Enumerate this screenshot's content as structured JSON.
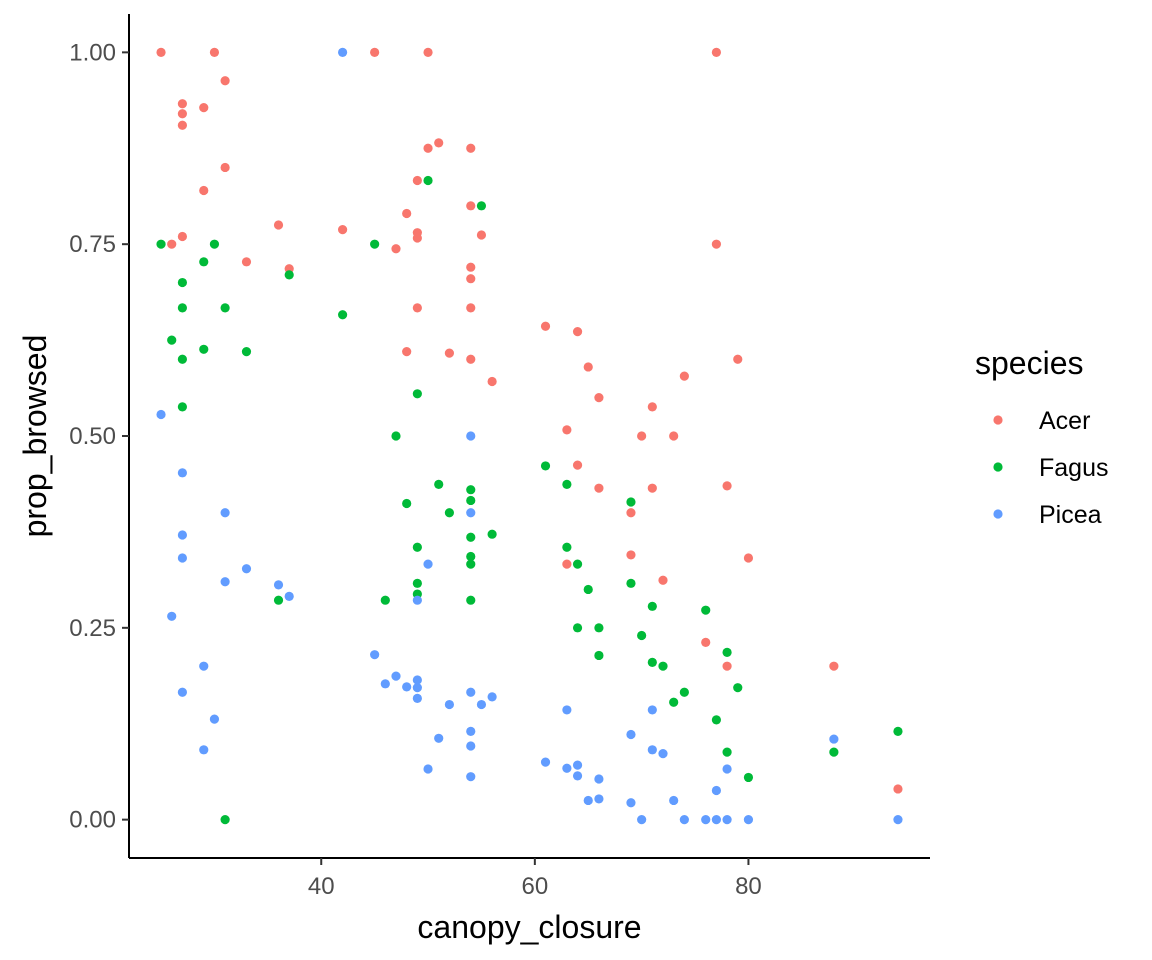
{
  "chart_data": {
    "type": "scatter",
    "xlabel": "canopy_closure",
    "ylabel": "prop_browsed",
    "xlim": [
      22,
      97
    ],
    "ylim": [
      -0.05,
      1.05
    ],
    "x_ticks": [
      40,
      60,
      80
    ],
    "x_tick_labels": [
      "40",
      "60",
      "80"
    ],
    "y_ticks": [
      0,
      0.25,
      0.5,
      0.75,
      1
    ],
    "y_tick_labels": [
      "0.00",
      "0.25",
      "0.50",
      "0.75",
      "1.00"
    ],
    "grid": false,
    "legend": {
      "title": "species",
      "position": "right"
    },
    "series": [
      {
        "name": "Acer",
        "color": "#F8766D",
        "points": [
          [
            25,
            1.0
          ],
          [
            30,
            1.0
          ],
          [
            45,
            1.0
          ],
          [
            50,
            1.0
          ],
          [
            77,
            1.0
          ],
          [
            31,
            0.963
          ],
          [
            27,
            0.933
          ],
          [
            29,
            0.928
          ],
          [
            27,
            0.92
          ],
          [
            27,
            0.905
          ],
          [
            51,
            0.882
          ],
          [
            50,
            0.875
          ],
          [
            54,
            0.875
          ],
          [
            31,
            0.85
          ],
          [
            49,
            0.833
          ],
          [
            29,
            0.82
          ],
          [
            54,
            0.8
          ],
          [
            48,
            0.79
          ],
          [
            36,
            0.775
          ],
          [
            42,
            0.769
          ],
          [
            49,
            0.765
          ],
          [
            55,
            0.762
          ],
          [
            27,
            0.76
          ],
          [
            49,
            0.758
          ],
          [
            26,
            0.75
          ],
          [
            77,
            0.75
          ],
          [
            47,
            0.744
          ],
          [
            33,
            0.727
          ],
          [
            54,
            0.72
          ],
          [
            37,
            0.718
          ],
          [
            54,
            0.705
          ],
          [
            49,
            0.667
          ],
          [
            54,
            0.667
          ],
          [
            61,
            0.643
          ],
          [
            64,
            0.636
          ],
          [
            48,
            0.61
          ],
          [
            52,
            0.608
          ],
          [
            54,
            0.6
          ],
          [
            79,
            0.6
          ],
          [
            65,
            0.59
          ],
          [
            74,
            0.578
          ],
          [
            56,
            0.571
          ],
          [
            66,
            0.55
          ],
          [
            71,
            0.538
          ],
          [
            63,
            0.508
          ],
          [
            70,
            0.5
          ],
          [
            73,
            0.5
          ],
          [
            64,
            0.462
          ],
          [
            78,
            0.435
          ],
          [
            66,
            0.432
          ],
          [
            71,
            0.432
          ],
          [
            69,
            0.4
          ],
          [
            69,
            0.345
          ],
          [
            80,
            0.341
          ],
          [
            63,
            0.333
          ],
          [
            72,
            0.312
          ],
          [
            76,
            0.231
          ],
          [
            78,
            0.2
          ],
          [
            88,
            0.2
          ],
          [
            94,
            0.04
          ]
        ]
      },
      {
        "name": "Fagus",
        "color": "#00BA38",
        "points": [
          [
            50,
            0.833
          ],
          [
            55,
            0.8
          ],
          [
            25,
            0.75
          ],
          [
            30,
            0.75
          ],
          [
            45,
            0.75
          ],
          [
            29,
            0.727
          ],
          [
            37,
            0.71
          ],
          [
            27,
            0.7
          ],
          [
            27,
            0.667
          ],
          [
            31,
            0.667
          ],
          [
            42,
            0.658
          ],
          [
            26,
            0.625
          ],
          [
            29,
            0.613
          ],
          [
            33,
            0.61
          ],
          [
            27,
            0.6
          ],
          [
            49,
            0.555
          ],
          [
            27,
            0.538
          ],
          [
            47,
            0.5
          ],
          [
            61,
            0.461
          ],
          [
            51,
            0.437
          ],
          [
            63,
            0.437
          ],
          [
            54,
            0.43
          ],
          [
            54,
            0.416
          ],
          [
            69,
            0.414
          ],
          [
            48,
            0.412
          ],
          [
            52,
            0.4
          ],
          [
            56,
            0.372
          ],
          [
            54,
            0.368
          ],
          [
            49,
            0.355
          ],
          [
            63,
            0.355
          ],
          [
            54,
            0.343
          ],
          [
            54,
            0.333
          ],
          [
            64,
            0.333
          ],
          [
            49,
            0.308
          ],
          [
            69,
            0.308
          ],
          [
            65,
            0.3
          ],
          [
            49,
            0.294
          ],
          [
            36,
            0.286
          ],
          [
            46,
            0.286
          ],
          [
            54,
            0.286
          ],
          [
            71,
            0.278
          ],
          [
            76,
            0.273
          ],
          [
            64,
            0.25
          ],
          [
            66,
            0.25
          ],
          [
            70,
            0.24
          ],
          [
            78,
            0.218
          ],
          [
            66,
            0.214
          ],
          [
            71,
            0.205
          ],
          [
            72,
            0.2
          ],
          [
            79,
            0.172
          ],
          [
            74,
            0.166
          ],
          [
            73,
            0.153
          ],
          [
            77,
            0.13
          ],
          [
            94,
            0.115
          ],
          [
            78,
            0.088
          ],
          [
            88,
            0.088
          ],
          [
            80,
            0.055
          ],
          [
            31,
            0.0
          ]
        ]
      },
      {
        "name": "Picea",
        "color": "#619CFF",
        "points": [
          [
            42,
            1.0
          ],
          [
            25,
            0.528
          ],
          [
            54,
            0.5
          ],
          [
            27,
            0.452
          ],
          [
            31,
            0.4
          ],
          [
            54,
            0.4
          ],
          [
            27,
            0.371
          ],
          [
            27,
            0.341
          ],
          [
            50,
            0.333
          ],
          [
            33,
            0.327
          ],
          [
            31,
            0.31
          ],
          [
            36,
            0.306
          ],
          [
            37,
            0.291
          ],
          [
            49,
            0.286
          ],
          [
            26,
            0.265
          ],
          [
            45,
            0.215
          ],
          [
            29,
            0.2
          ],
          [
            47,
            0.187
          ],
          [
            49,
            0.182
          ],
          [
            46,
            0.177
          ],
          [
            48,
            0.173
          ],
          [
            49,
            0.172
          ],
          [
            27,
            0.166
          ],
          [
            54,
            0.166
          ],
          [
            56,
            0.16
          ],
          [
            49,
            0.158
          ],
          [
            52,
            0.15
          ],
          [
            55,
            0.15
          ],
          [
            63,
            0.143
          ],
          [
            71,
            0.143
          ],
          [
            30,
            0.131
          ],
          [
            54,
            0.115
          ],
          [
            88,
            0.105
          ],
          [
            69,
            0.111
          ],
          [
            51,
            0.106
          ],
          [
            54,
            0.096
          ],
          [
            29,
            0.091
          ],
          [
            71,
            0.091
          ],
          [
            72,
            0.086
          ],
          [
            61,
            0.075
          ],
          [
            64,
            0.071
          ],
          [
            63,
            0.067
          ],
          [
            78,
            0.066
          ],
          [
            50,
            0.066
          ],
          [
            64,
            0.057
          ],
          [
            54,
            0.056
          ],
          [
            66,
            0.053
          ],
          [
            77,
            0.038
          ],
          [
            66,
            0.027
          ],
          [
            65,
            0.025
          ],
          [
            73,
            0.025
          ],
          [
            69,
            0.022
          ],
          [
            70,
            0.0
          ],
          [
            74,
            0.0
          ],
          [
            76,
            0.0
          ],
          [
            77,
            0.0
          ],
          [
            78,
            0.0
          ],
          [
            80,
            0.0
          ],
          [
            94,
            0.0
          ]
        ]
      }
    ]
  }
}
